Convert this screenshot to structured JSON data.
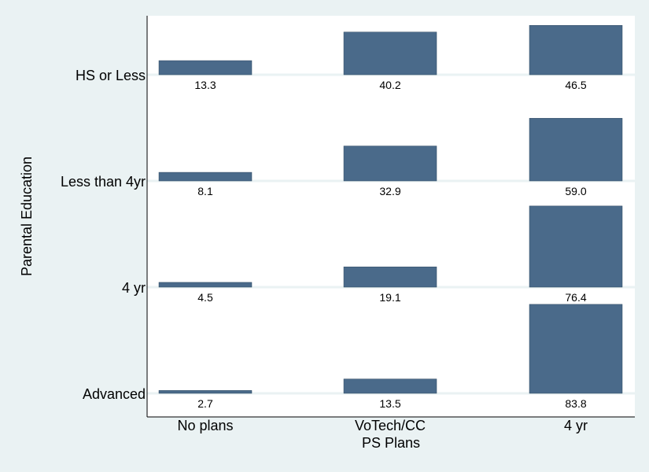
{
  "chart_data": {
    "type": "bar",
    "layout": "grouped-rows",
    "xlabel": "PS Plans",
    "ylabel": "Parental Education",
    "categories": [
      "No plans",
      "VoTech/CC",
      "4 yr"
    ],
    "rows": [
      {
        "name": "HS or Less",
        "values": [
          13.3,
          40.2,
          46.5
        ],
        "labels": [
          "13.3",
          "40.2",
          "46.5"
        ]
      },
      {
        "name": "Less than 4yr",
        "values": [
          8.1,
          32.9,
          59.0
        ],
        "labels": [
          "8.1",
          "32.9",
          "59.0"
        ]
      },
      {
        "name": "4 yr",
        "values": [
          4.5,
          19.1,
          76.4
        ],
        "labels": [
          "4.5",
          "19.1",
          "76.4"
        ]
      },
      {
        "name": "Advanced",
        "values": [
          2.7,
          13.5,
          83.8
        ],
        "labels": [
          "2.7",
          "13.5",
          "83.8"
        ]
      }
    ],
    "ylim": [
      0,
      100
    ],
    "grid": true,
    "bar_color": "#4a6a8a",
    "background_color": "#eaf2f3",
    "plot_background_color": "#ffffff",
    "grid_color": "#eaf2f3"
  }
}
